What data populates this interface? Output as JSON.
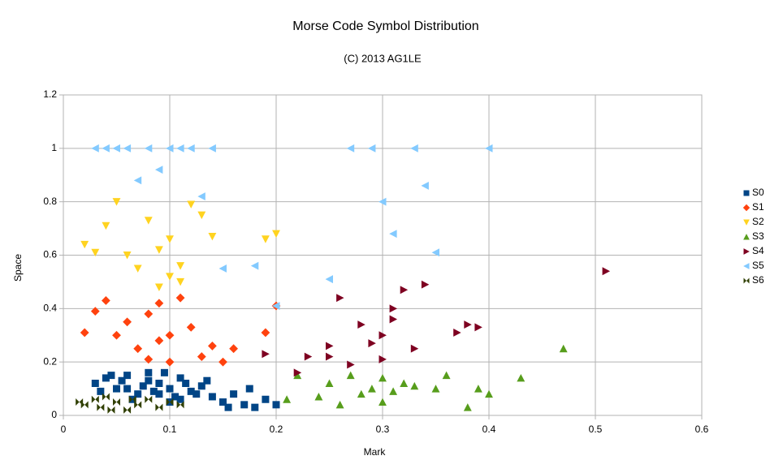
{
  "chart_data": {
    "type": "scatter",
    "title": "Morse Code Symbol Distribution",
    "subtitle": "(C) 2013 AG1LE",
    "x_label": "Mark",
    "y_label": "Space",
    "xlim": [
      0,
      0.6
    ],
    "xticks": [
      0,
      0.1,
      0.2,
      0.3,
      0.4,
      0.5,
      0.6
    ],
    "ylim": [
      0,
      1.2
    ],
    "yticks": [
      0,
      0.2,
      0.4,
      0.6,
      0.8,
      1,
      1.2
    ],
    "grid": true,
    "legend": "right",
    "series": [
      {
        "name": "S0",
        "color": "#004586",
        "marker": "square",
        "x": [
          0.03,
          0.04,
          0.05,
          0.06,
          0.07,
          0.08,
          0.09,
          0.1,
          0.11,
          0.12,
          0.13,
          0.14,
          0.15,
          0.16,
          0.17,
          0.18,
          0.19,
          0.2,
          0.035,
          0.055,
          0.075,
          0.095,
          0.105,
          0.115,
          0.125,
          0.065,
          0.085,
          0.045,
          0.135,
          0.155,
          0.175,
          0.1,
          0.08,
          0.06,
          0.11,
          0.09
        ],
        "values": [
          0.12,
          0.14,
          0.1,
          0.15,
          0.08,
          0.16,
          0.12,
          0.1,
          0.14,
          0.09,
          0.11,
          0.07,
          0.05,
          0.08,
          0.04,
          0.03,
          0.06,
          0.04,
          0.09,
          0.13,
          0.11,
          0.16,
          0.07,
          0.12,
          0.08,
          0.06,
          0.09,
          0.15,
          0.13,
          0.03,
          0.1,
          0.05,
          0.13,
          0.1,
          0.06,
          0.08
        ]
      },
      {
        "name": "S1",
        "color": "#ff420e",
        "marker": "diamond",
        "x": [
          0.02,
          0.03,
          0.04,
          0.05,
          0.06,
          0.07,
          0.08,
          0.09,
          0.1,
          0.11,
          0.12,
          0.13,
          0.14,
          0.15,
          0.16,
          0.19,
          0.2,
          0.1,
          0.09,
          0.08
        ],
        "values": [
          0.31,
          0.39,
          0.43,
          0.3,
          0.35,
          0.25,
          0.38,
          0.42,
          0.3,
          0.44,
          0.33,
          0.22,
          0.26,
          0.2,
          0.25,
          0.31,
          0.41,
          0.2,
          0.28,
          0.21
        ]
      },
      {
        "name": "S2",
        "color": "#ffd320",
        "marker": "down",
        "x": [
          0.02,
          0.03,
          0.05,
          0.06,
          0.07,
          0.08,
          0.09,
          0.1,
          0.11,
          0.12,
          0.13,
          0.14,
          0.19,
          0.2,
          0.1,
          0.09,
          0.04,
          0.11
        ],
        "values": [
          0.64,
          0.61,
          0.8,
          0.6,
          0.55,
          0.73,
          0.62,
          0.66,
          0.56,
          0.79,
          0.75,
          0.67,
          0.66,
          0.68,
          0.52,
          0.48,
          0.71,
          0.5
        ]
      },
      {
        "name": "S3",
        "color": "#579d1c",
        "marker": "up",
        "x": [
          0.21,
          0.22,
          0.24,
          0.25,
          0.26,
          0.27,
          0.28,
          0.29,
          0.3,
          0.31,
          0.32,
          0.33,
          0.35,
          0.36,
          0.38,
          0.39,
          0.4,
          0.43,
          0.47,
          0.3
        ],
        "values": [
          0.06,
          0.15,
          0.07,
          0.12,
          0.04,
          0.15,
          0.08,
          0.1,
          0.14,
          0.09,
          0.12,
          0.11,
          0.1,
          0.15,
          0.03,
          0.1,
          0.08,
          0.14,
          0.25,
          0.05
        ]
      },
      {
        "name": "S4",
        "color": "#7e0021",
        "marker": "right",
        "x": [
          0.19,
          0.22,
          0.23,
          0.25,
          0.26,
          0.27,
          0.28,
          0.29,
          0.3,
          0.31,
          0.32,
          0.33,
          0.34,
          0.25,
          0.3,
          0.31,
          0.37,
          0.38,
          0.39,
          0.51
        ],
        "values": [
          0.23,
          0.16,
          0.22,
          0.26,
          0.44,
          0.19,
          0.34,
          0.27,
          0.3,
          0.36,
          0.47,
          0.25,
          0.49,
          0.22,
          0.21,
          0.4,
          0.31,
          0.34,
          0.33,
          0.54
        ]
      },
      {
        "name": "S5",
        "color": "#83caff",
        "marker": "left",
        "x": [
          0.03,
          0.04,
          0.05,
          0.06,
          0.08,
          0.1,
          0.11,
          0.12,
          0.14,
          0.07,
          0.09,
          0.13,
          0.15,
          0.18,
          0.2,
          0.25,
          0.27,
          0.29,
          0.3,
          0.31,
          0.33,
          0.34,
          0.35,
          0.4
        ],
        "values": [
          1,
          1,
          1,
          1,
          1,
          1,
          1,
          1,
          1,
          0.88,
          0.92,
          0.82,
          0.55,
          0.56,
          0.41,
          0.51,
          1,
          1,
          0.8,
          0.68,
          1,
          0.86,
          0.61,
          1
        ]
      },
      {
        "name": "S6",
        "color": "#314004",
        "marker": "bowtie",
        "x": [
          0.015,
          0.02,
          0.03,
          0.035,
          0.04,
          0.05,
          0.06,
          0.07,
          0.08,
          0.09,
          0.1,
          0.11,
          0.045,
          0.065
        ],
        "values": [
          0.05,
          0.04,
          0.06,
          0.03,
          0.07,
          0.05,
          0.02,
          0.04,
          0.06,
          0.03,
          0.05,
          0.04,
          0.02,
          0.06
        ]
      }
    ]
  }
}
